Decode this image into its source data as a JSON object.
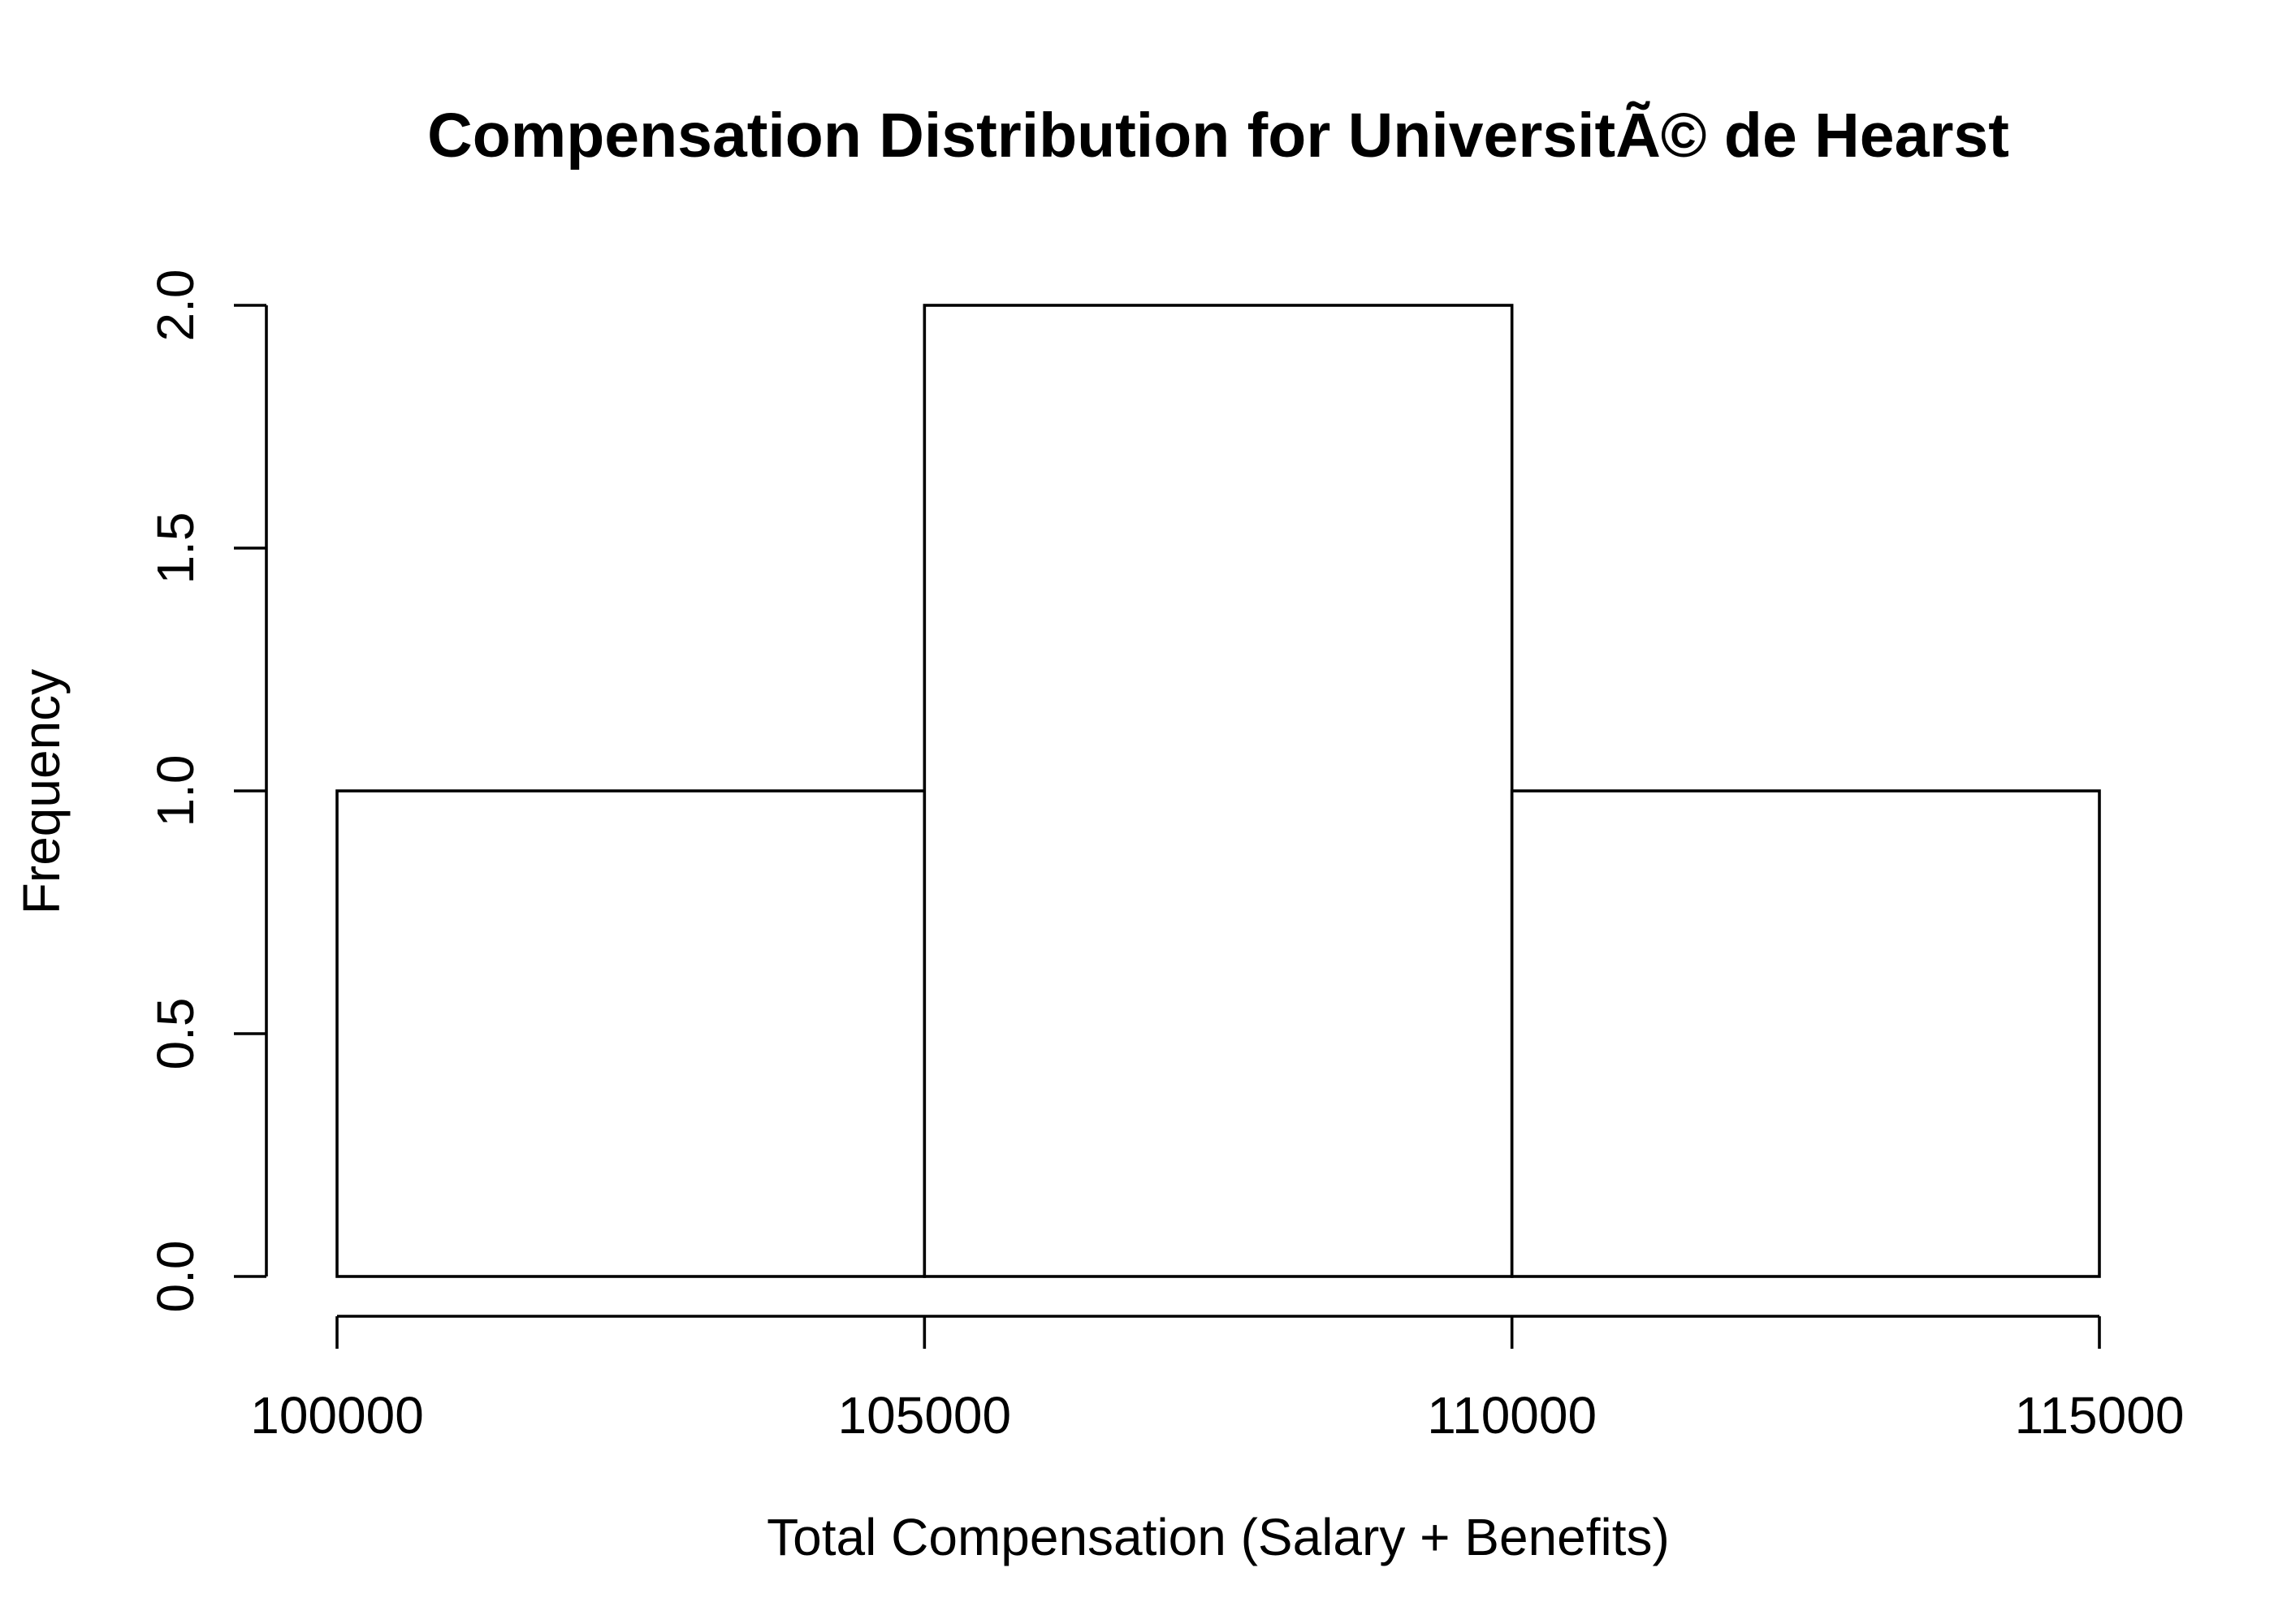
{
  "chart_data": {
    "type": "bar",
    "subtype": "histogram",
    "title": "Compensation Distribution for UniversitÃ© de Hearst",
    "xlabel": "Total Compensation (Salary + Benefits)",
    "ylabel": "Frequency",
    "bins": [
      {
        "start": 100000,
        "end": 105000,
        "count": 1
      },
      {
        "start": 105000,
        "end": 110000,
        "count": 2
      },
      {
        "start": 110000,
        "end": 115000,
        "count": 1
      }
    ],
    "x_ticks": [
      100000,
      105000,
      110000,
      115000
    ],
    "x_tick_labels": [
      "100000",
      "105000",
      "110000",
      "115000"
    ],
    "y_ticks": [
      0.0,
      0.5,
      1.0,
      1.5,
      2.0
    ],
    "y_tick_labels": [
      "0.0",
      "0.5",
      "1.0",
      "1.5",
      "2.0"
    ],
    "xlim": [
      100000,
      115000
    ],
    "ylim": [
      0,
      2
    ],
    "grid": false,
    "legend": "none",
    "colors": {
      "bar_fill": "#ffffff",
      "bar_stroke": "#000000",
      "axis": "#000000",
      "background": "#ffffff"
    }
  }
}
